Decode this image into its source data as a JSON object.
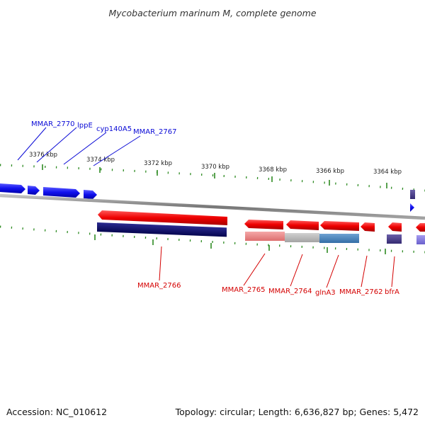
{
  "title": "Mycobacterium marinum M, complete genome",
  "footer": {
    "accession": "Accession: NC_010612",
    "summary": "Topology: circular; Length: 6,636,827 bp; Genes: 5,472"
  },
  "scale": {
    "labels": [
      "3376 kbp",
      "3374 kbp",
      "3372 kbp",
      "3370 kbp",
      "3368 kbp",
      "3366 kbp",
      "3364 kbp"
    ]
  },
  "forward_genes": {
    "labels": [
      "MMAR_2770",
      "lppE",
      "cyp140A5",
      "MMAR_2767"
    ]
  },
  "reverse_genes": {
    "labels": [
      "MMAR_2766",
      "MMAR_2765",
      "MMAR_2764",
      "glnA3",
      "MMAR_2762",
      "bfrA"
    ]
  },
  "colors": {
    "forward_strand": "#1010ee",
    "reverse_strand": "#ee0000",
    "label_forward": "#0a0ad6",
    "label_reverse": "#d40000",
    "tick": "#2e8b22",
    "backbone": "#888888",
    "cog_navy": "#0a0a70",
    "cog_pink": "#ee8a8a",
    "cog_gray": "#b8b8b8",
    "cog_steel": "#4c86bc",
    "cog_purple": "#4a3f8a",
    "cog_lavender": "#8a80e0"
  }
}
